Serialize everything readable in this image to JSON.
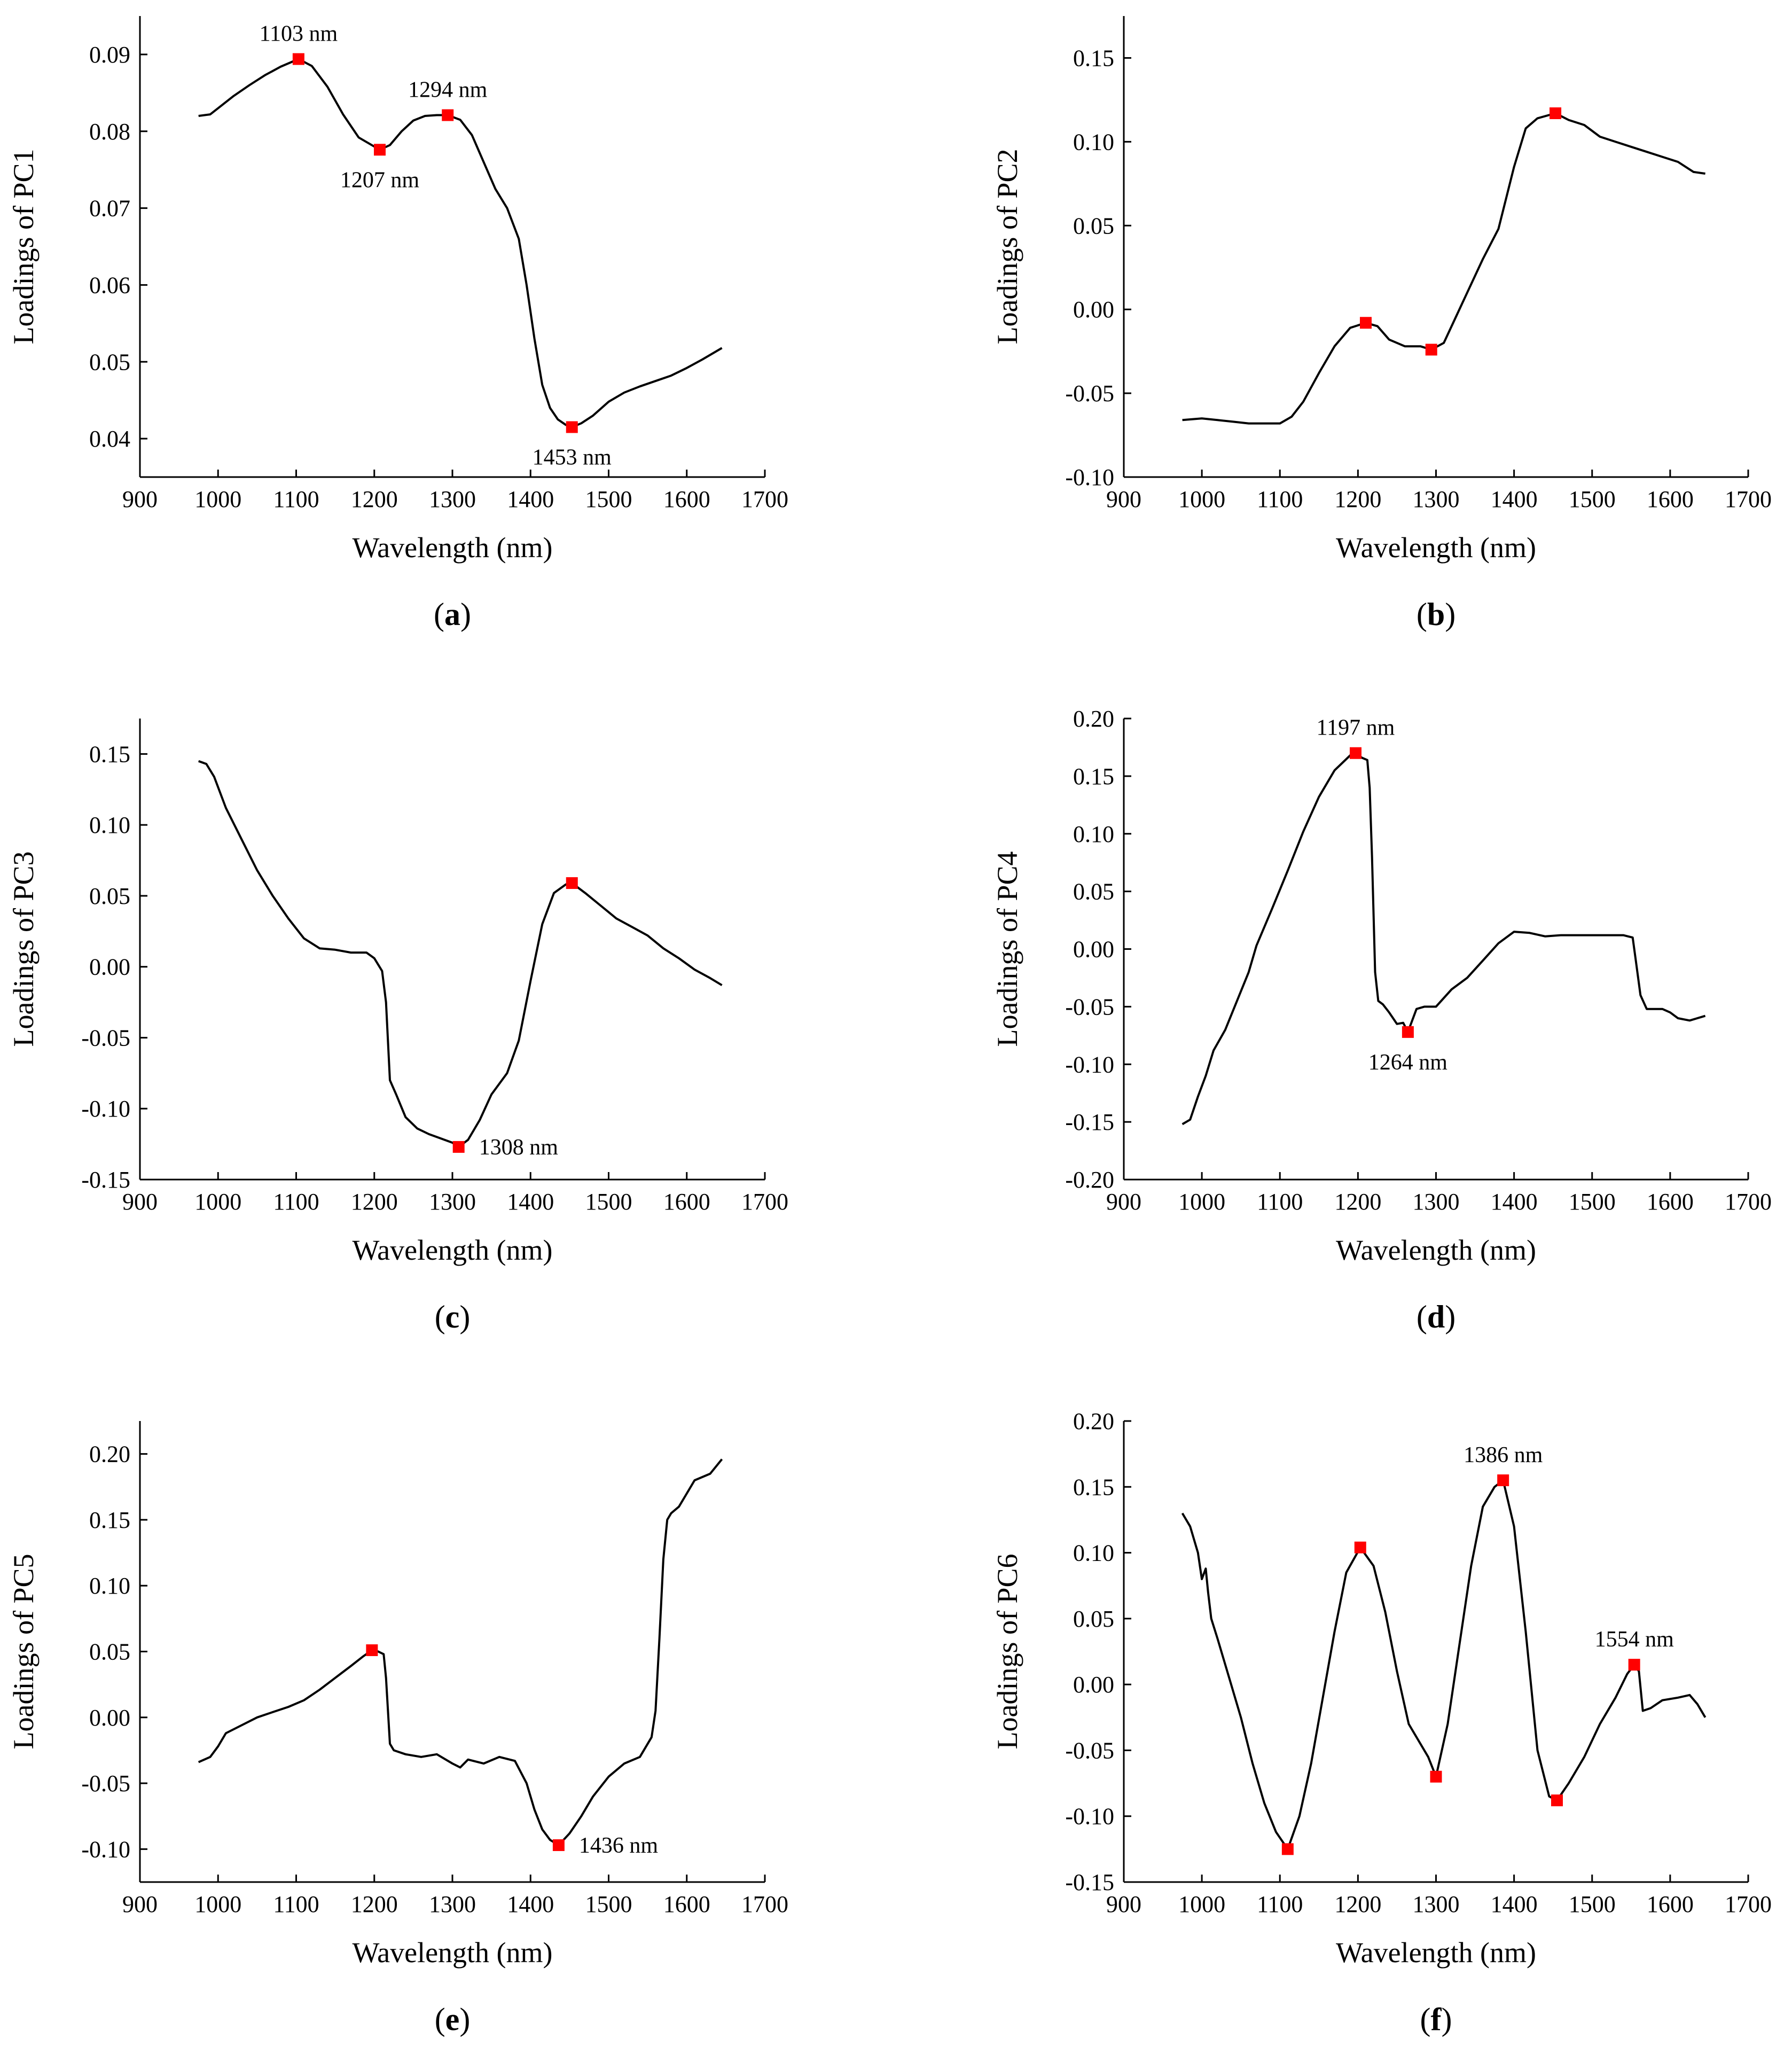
{
  "chart_data": [
    {
      "id": "a",
      "type": "line",
      "panel_label": "a",
      "xlabel": "Wavelength (nm)",
      "ylabel": "Loadings of PC1",
      "xlim": [
        900,
        1700
      ],
      "ylim": [
        0.035,
        0.095
      ],
      "xticks": [
        "900",
        "1000",
        "1100",
        "1200",
        "1300",
        "1400",
        "1500",
        "1600",
        "1700"
      ],
      "yticks": [
        "0.04",
        "0.05",
        "0.06",
        "0.07",
        "0.08",
        "0.09"
      ],
      "series": [
        {
          "name": "PC1",
          "x": [
            975,
            990,
            1000,
            1020,
            1040,
            1060,
            1080,
            1103,
            1120,
            1140,
            1160,
            1180,
            1207,
            1220,
            1235,
            1250,
            1265,
            1280,
            1294,
            1310,
            1325,
            1340,
            1355,
            1370,
            1385,
            1395,
            1405,
            1415,
            1425,
            1435,
            1445,
            1453,
            1465,
            1480,
            1500,
            1520,
            1540,
            1560,
            1580,
            1600,
            1620,
            1645
          ],
          "y": [
            0.082,
            0.0822,
            0.083,
            0.0846,
            0.086,
            0.0873,
            0.0884,
            0.0894,
            0.0885,
            0.0858,
            0.0822,
            0.0792,
            0.0776,
            0.0782,
            0.08,
            0.0814,
            0.082,
            0.0821,
            0.0821,
            0.0815,
            0.0795,
            0.076,
            0.0725,
            0.07,
            0.066,
            0.06,
            0.053,
            0.047,
            0.044,
            0.0425,
            0.0418,
            0.0415,
            0.042,
            0.043,
            0.0448,
            0.046,
            0.0468,
            0.0475,
            0.0482,
            0.0492,
            0.0503,
            0.0518
          ]
        }
      ],
      "markers": [
        {
          "x": 1103,
          "y": 0.0894,
          "label": "1103 nm",
          "anchor": "above"
        },
        {
          "x": 1207,
          "y": 0.0776,
          "label": "1207 nm",
          "anchor": "below"
        },
        {
          "x": 1294,
          "y": 0.0821,
          "label": "1294 nm",
          "anchor": "above"
        },
        {
          "x": 1453,
          "y": 0.0415,
          "label": "1453 nm",
          "anchor": "below"
        }
      ]
    },
    {
      "id": "b",
      "type": "line",
      "panel_label": "b",
      "xlabel": "Wavelength (nm)",
      "ylabel": "Loadings of PC2",
      "xlim": [
        900,
        1700
      ],
      "ylim": [
        -0.1,
        0.175
      ],
      "xticks": [
        "900",
        "1000",
        "1100",
        "1200",
        "1300",
        "1400",
        "1500",
        "1600",
        "1700"
      ],
      "yticks": [
        "-0.10",
        "-0.05",
        "0.00",
        "0.05",
        "0.10",
        "0.15"
      ],
      "series": [
        {
          "name": "PC2",
          "x": [
            975,
            1000,
            1020,
            1040,
            1060,
            1080,
            1100,
            1115,
            1130,
            1150,
            1170,
            1190,
            1210,
            1225,
            1240,
            1260,
            1280,
            1294,
            1310,
            1325,
            1340,
            1360,
            1380,
            1400,
            1415,
            1430,
            1453,
            1470,
            1490,
            1510,
            1530,
            1550,
            1570,
            1590,
            1610,
            1630,
            1645
          ],
          "y": [
            -0.066,
            -0.065,
            -0.066,
            -0.067,
            -0.068,
            -0.068,
            -0.068,
            -0.064,
            -0.055,
            -0.038,
            -0.022,
            -0.011,
            -0.008,
            -0.01,
            -0.018,
            -0.022,
            -0.022,
            -0.024,
            -0.02,
            -0.005,
            0.01,
            0.03,
            0.048,
            0.085,
            0.108,
            0.114,
            0.117,
            0.113,
            0.11,
            0.103,
            0.1,
            0.097,
            0.094,
            0.091,
            0.088,
            0.082,
            0.081
          ]
        }
      ],
      "markers": [
        {
          "x": 1210,
          "y": -0.008,
          "label": "",
          "anchor": "none"
        },
        {
          "x": 1294,
          "y": -0.024,
          "label": "",
          "anchor": "none"
        },
        {
          "x": 1453,
          "y": 0.117,
          "label": "",
          "anchor": "none"
        }
      ]
    },
    {
      "id": "c",
      "type": "line",
      "panel_label": "c",
      "xlabel": "Wavelength (nm)",
      "ylabel": "Loadings of PC3",
      "xlim": [
        900,
        1700
      ],
      "ylim": [
        -0.15,
        0.175
      ],
      "xticks": [
        "900",
        "1000",
        "1100",
        "1200",
        "1300",
        "1400",
        "1500",
        "1600",
        "1700"
      ],
      "yticks": [
        "-0.15",
        "-0.10",
        "-0.05",
        "0.00",
        "0.05",
        "0.10",
        "0.15"
      ],
      "series": [
        {
          "name": "PC3",
          "x": [
            975,
            985,
            995,
            1010,
            1030,
            1050,
            1070,
            1090,
            1110,
            1130,
            1150,
            1170,
            1190,
            1200,
            1210,
            1215,
            1220,
            1228,
            1240,
            1255,
            1270,
            1285,
            1300,
            1308,
            1320,
            1335,
            1350,
            1370,
            1385,
            1400,
            1415,
            1430,
            1445,
            1453,
            1470,
            1490,
            1510,
            1530,
            1550,
            1570,
            1590,
            1610,
            1630,
            1645
          ],
          "y": [
            0.145,
            0.143,
            0.134,
            0.112,
            0.09,
            0.068,
            0.05,
            0.034,
            0.02,
            0.013,
            0.012,
            0.01,
            0.01,
            0.006,
            -0.003,
            -0.025,
            -0.08,
            -0.09,
            -0.106,
            -0.114,
            -0.118,
            -0.121,
            -0.124,
            -0.127,
            -0.122,
            -0.108,
            -0.09,
            -0.075,
            -0.052,
            -0.01,
            0.03,
            0.052,
            0.058,
            0.059,
            0.052,
            0.043,
            0.034,
            0.028,
            0.022,
            0.013,
            0.006,
            -0.002,
            -0.008,
            -0.013
          ]
        }
      ],
      "markers": [
        {
          "x": 1308,
          "y": -0.127,
          "label": "1308 nm",
          "anchor": "right"
        },
        {
          "x": 1453,
          "y": 0.059,
          "label": "",
          "anchor": "none"
        }
      ]
    },
    {
      "id": "d",
      "type": "line",
      "panel_label": "d",
      "xlabel": "Wavelength (nm)",
      "ylabel": "Loadings of PC4",
      "xlim": [
        900,
        1700
      ],
      "ylim": [
        -0.2,
        0.2
      ],
      "xticks": [
        "900",
        "1000",
        "1100",
        "1200",
        "1300",
        "1400",
        "1500",
        "1600",
        "1700"
      ],
      "yticks": [
        "-0.20",
        "-0.15",
        "-0.10",
        "-0.05",
        "0.00",
        "0.05",
        "0.10",
        "0.15",
        "0.20"
      ],
      "series": [
        {
          "name": "PC4",
          "x": [
            975,
            985,
            995,
            1005,
            1015,
            1030,
            1045,
            1060,
            1070,
            1090,
            1110,
            1130,
            1150,
            1170,
            1190,
            1197,
            1205,
            1212,
            1215,
            1218,
            1222,
            1226,
            1232,
            1240,
            1250,
            1258,
            1264,
            1275,
            1285,
            1300,
            1320,
            1340,
            1360,
            1380,
            1400,
            1420,
            1440,
            1460,
            1480,
            1500,
            1520,
            1540,
            1552,
            1556,
            1562,
            1570,
            1580,
            1590,
            1600,
            1610,
            1625,
            1645
          ],
          "y": [
            -0.152,
            -0.148,
            -0.128,
            -0.11,
            -0.088,
            -0.07,
            -0.045,
            -0.02,
            0.003,
            0.035,
            0.068,
            0.102,
            0.132,
            0.155,
            0.168,
            0.17,
            0.166,
            0.164,
            0.14,
            0.08,
            -0.02,
            -0.045,
            -0.048,
            -0.055,
            -0.065,
            -0.064,
            -0.072,
            -0.052,
            -0.05,
            -0.05,
            -0.035,
            -0.025,
            -0.01,
            0.005,
            0.015,
            0.014,
            0.011,
            0.012,
            0.012,
            0.012,
            0.012,
            0.012,
            0.01,
            -0.01,
            -0.04,
            -0.052,
            -0.052,
            -0.052,
            -0.055,
            -0.06,
            -0.062,
            -0.058
          ]
        }
      ],
      "markers": [
        {
          "x": 1197,
          "y": 0.17,
          "label": "1197 nm",
          "anchor": "above"
        },
        {
          "x": 1264,
          "y": -0.072,
          "label": "1264 nm",
          "anchor": "below"
        }
      ]
    },
    {
      "id": "e",
      "type": "line",
      "panel_label": "e",
      "xlabel": "Wavelength (nm)",
      "ylabel": "Loadings of PC5",
      "xlim": [
        900,
        1700
      ],
      "ylim": [
        -0.125,
        0.225
      ],
      "xticks": [
        "900",
        "1000",
        "1100",
        "1200",
        "1300",
        "1400",
        "1500",
        "1600",
        "1700"
      ],
      "yticks": [
        "-0.10",
        "-0.05",
        "0.00",
        "0.05",
        "0.10",
        "0.15",
        "0.20"
      ],
      "series": [
        {
          "name": "PC5",
          "x": [
            975,
            990,
            1000,
            1010,
            1030,
            1050,
            1070,
            1090,
            1110,
            1130,
            1150,
            1170,
            1185,
            1197,
            1205,
            1212,
            1215,
            1220,
            1225,
            1240,
            1260,
            1280,
            1300,
            1310,
            1320,
            1340,
            1360,
            1380,
            1395,
            1405,
            1415,
            1425,
            1436,
            1450,
            1465,
            1480,
            1500,
            1520,
            1540,
            1555,
            1560,
            1565,
            1570,
            1575,
            1580,
            1590,
            1600,
            1610,
            1630,
            1645
          ],
          "y": [
            -0.034,
            -0.03,
            -0.022,
            -0.012,
            -0.006,
            0.0,
            0.004,
            0.008,
            0.013,
            0.021,
            0.03,
            0.039,
            0.046,
            0.051,
            0.05,
            0.048,
            0.03,
            -0.02,
            -0.025,
            -0.028,
            -0.03,
            -0.028,
            -0.035,
            -0.038,
            -0.032,
            -0.035,
            -0.03,
            -0.033,
            -0.05,
            -0.07,
            -0.085,
            -0.093,
            -0.097,
            -0.088,
            -0.075,
            -0.06,
            -0.045,
            -0.035,
            -0.03,
            -0.015,
            0.005,
            0.06,
            0.12,
            0.15,
            0.155,
            0.16,
            0.17,
            0.18,
            0.185,
            0.196
          ]
        }
      ],
      "markers": [
        {
          "x": 1197,
          "y": 0.051,
          "label": "",
          "anchor": "none"
        },
        {
          "x": 1436,
          "y": -0.097,
          "label": "1436 nm",
          "anchor": "right"
        }
      ]
    },
    {
      "id": "f",
      "type": "line",
      "panel_label": "f",
      "xlabel": "Wavelength (nm)",
      "ylabel": "Loadings of PC6",
      "xlim": [
        900,
        1700
      ],
      "ylim": [
        -0.15,
        0.2
      ],
      "xticks": [
        "900",
        "1000",
        "1100",
        "1200",
        "1300",
        "1400",
        "1500",
        "1600",
        "1700"
      ],
      "yticks": [
        "-0.15",
        "-0.10",
        "-0.05",
        "0.00",
        "0.05",
        "0.10",
        "0.15",
        "0.20"
      ],
      "series": [
        {
          "name": "PC6",
          "x": [
            975,
            985,
            995,
            1000,
            1005,
            1008,
            1012,
            1020,
            1035,
            1050,
            1065,
            1080,
            1095,
            1110,
            1125,
            1140,
            1155,
            1170,
            1185,
            1203,
            1220,
            1235,
            1250,
            1265,
            1280,
            1290,
            1300,
            1315,
            1330,
            1345,
            1360,
            1375,
            1386,
            1400,
            1415,
            1430,
            1445,
            1455,
            1470,
            1490,
            1510,
            1530,
            1545,
            1554,
            1560,
            1565,
            1575,
            1590,
            1610,
            1625,
            1635,
            1645
          ],
          "y": [
            0.13,
            0.12,
            0.1,
            0.08,
            0.088,
            0.07,
            0.05,
            0.035,
            0.005,
            -0.025,
            -0.06,
            -0.09,
            -0.112,
            -0.125,
            -0.1,
            -0.06,
            -0.01,
            0.04,
            0.085,
            0.104,
            0.09,
            0.055,
            0.01,
            -0.03,
            -0.045,
            -0.055,
            -0.07,
            -0.03,
            0.03,
            0.09,
            0.135,
            0.15,
            0.155,
            0.12,
            0.04,
            -0.05,
            -0.085,
            -0.088,
            -0.075,
            -0.055,
            -0.03,
            -0.01,
            0.008,
            0.015,
            0.01,
            -0.02,
            -0.018,
            -0.012,
            -0.01,
            -0.008,
            -0.015,
            -0.025
          ]
        }
      ],
      "markers": [
        {
          "x": 1110,
          "y": -0.125,
          "label": "",
          "anchor": "none"
        },
        {
          "x": 1203,
          "y": 0.104,
          "label": "",
          "anchor": "none"
        },
        {
          "x": 1300,
          "y": -0.07,
          "label": "",
          "anchor": "none"
        },
        {
          "x": 1386,
          "y": 0.155,
          "label": "1386 nm",
          "anchor": "above"
        },
        {
          "x": 1455,
          "y": -0.088,
          "label": "",
          "anchor": "none"
        },
        {
          "x": 1554,
          "y": 0.015,
          "label": "1554 nm",
          "anchor": "above"
        }
      ]
    }
  ]
}
